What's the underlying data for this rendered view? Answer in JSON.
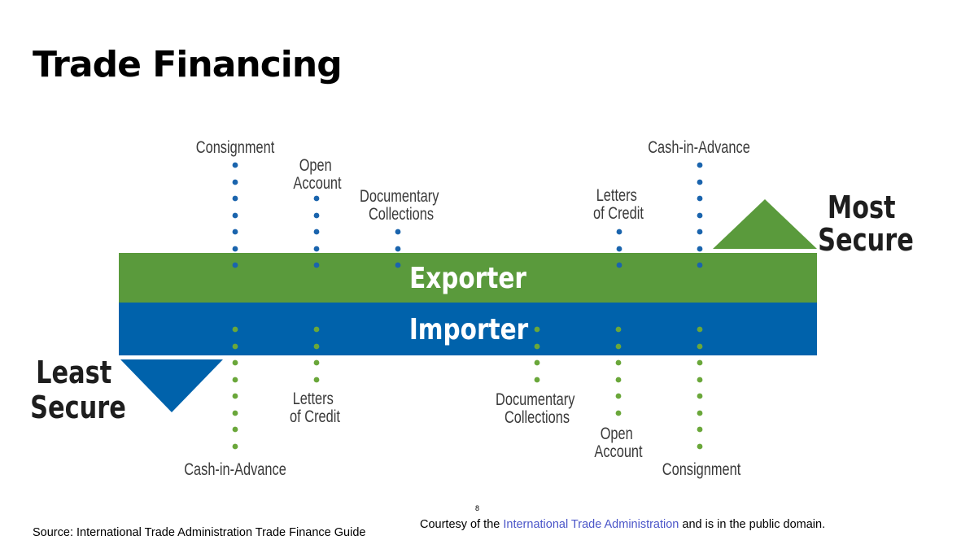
{
  "title": "Trade Financing",
  "colors": {
    "exporter_band": "#5a9a3c",
    "importer_band": "#0062ab",
    "exporter_dots": "#1a64ad",
    "importer_dots": "#6aa73a",
    "label_text": "#3a3a3a",
    "link": "#4a55c8"
  },
  "diagram": {
    "exporter_label": "Exporter",
    "importer_label": "Importer",
    "most_secure": [
      "Most",
      "Secure"
    ],
    "least_secure": [
      "Least",
      "Secure"
    ],
    "exporter_methods": [
      {
        "lines": [
          "Consignment"
        ]
      },
      {
        "lines": [
          "Open",
          "Account"
        ]
      },
      {
        "lines": [
          "Documentary",
          "Collections"
        ]
      },
      {
        "lines": [
          "Letters",
          "of Credit"
        ]
      },
      {
        "lines": [
          "Cash-in-Advance"
        ]
      }
    ],
    "importer_methods": [
      {
        "lines": [
          "Cash-in-Advance"
        ]
      },
      {
        "lines": [
          "Letters",
          "of Credit"
        ]
      },
      {
        "lines": [
          "Documentary",
          "Collections"
        ]
      },
      {
        "lines": [
          "Open",
          "Account"
        ]
      },
      {
        "lines": [
          "Consignment"
        ]
      }
    ]
  },
  "footer": {
    "page_number": "8",
    "source": "Source:  International Trade Administration Trade Finance Guide",
    "courtesy_prefix": "Courtesy of the ",
    "courtesy_link": "International Trade Administration",
    "courtesy_suffix": " and is in the public domain."
  }
}
